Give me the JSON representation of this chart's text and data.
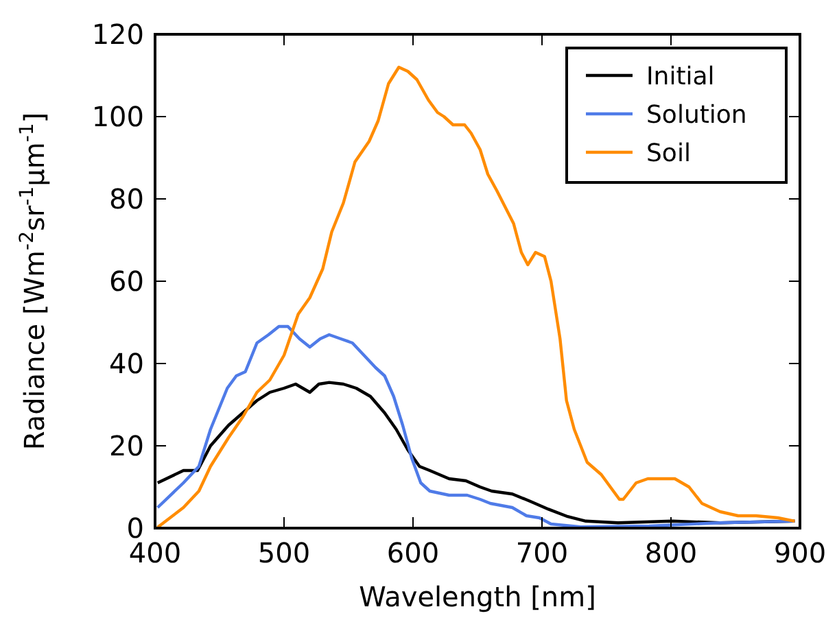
{
  "chart_data": {
    "type": "line",
    "xlabel": "Wavelength [nm]",
    "ylabel": "Radiance [Wm$^{-2}$sr$^{-1}$μm$^{-1}$]",
    "xlim": [
      400,
      900
    ],
    "xticks": [
      400,
      500,
      600,
      700,
      800,
      900
    ],
    "ylim": [
      0,
      120
    ],
    "yticks": [
      0,
      20,
      40,
      60,
      80,
      100,
      120
    ],
    "grid": false,
    "legend": "top right",
    "line_style": "solid",
    "marker": "none",
    "series": [
      {
        "name": "Initial",
        "color": "#000000",
        "x": [
          402,
          422,
          433,
          443,
          457,
          468,
          479,
          489,
          500,
          509,
          520,
          527,
          535,
          546,
          556,
          567,
          578,
          587,
          596,
          605,
          613,
          628,
          641,
          652,
          661,
          677,
          691,
          705,
          720,
          734,
          759,
          801,
          838,
          896
        ],
        "values": [
          11,
          14,
          14,
          20,
          25,
          28,
          31,
          33,
          34,
          35,
          33,
          35,
          35.4,
          35,
          34,
          32,
          28,
          24,
          19,
          15,
          14,
          12,
          11.5,
          10,
          9,
          8.3,
          6.5,
          4.6,
          2.8,
          1.7,
          1.3,
          1.7,
          1.3,
          1.7
        ]
      },
      {
        "name": "Solution",
        "color": "#4f7be8",
        "x": [
          402,
          422,
          434,
          443,
          456,
          463,
          470,
          479,
          488,
          496,
          503,
          512,
          520,
          528,
          535,
          544,
          553,
          562,
          571,
          578,
          585,
          592,
          599,
          606,
          613,
          628,
          642,
          652,
          660,
          677,
          688,
          698,
          707,
          730,
          783,
          838,
          896
        ],
        "values": [
          5,
          11,
          15,
          24,
          34,
          37,
          38,
          45,
          47,
          49,
          49,
          46,
          44,
          46,
          47,
          46,
          45,
          42,
          39,
          37,
          32,
          25,
          17,
          11,
          9,
          8,
          8,
          7,
          6,
          5,
          3,
          2.5,
          1,
          0.3,
          0.5,
          1.3,
          1.7
        ]
      },
      {
        "name": "Soil",
        "color": "#ff8c00",
        "x": [
          402,
          422,
          434,
          443,
          457,
          468,
          479,
          489,
          500,
          511,
          520,
          530,
          537,
          546,
          555,
          566,
          573,
          581,
          589,
          596,
          603,
          612,
          619,
          624,
          631,
          640,
          645,
          652,
          658,
          665,
          678,
          684,
          689,
          695,
          702,
          707,
          714,
          719,
          725,
          735,
          746,
          753,
          760,
          763,
          773,
          782,
          797,
          803,
          814,
          824,
          838,
          852,
          866,
          883,
          896
        ],
        "values": [
          0.2,
          5,
          9,
          15,
          22,
          27,
          33,
          36,
          42,
          52,
          56,
          63,
          72,
          79,
          89,
          94,
          99,
          108,
          112,
          111,
          109,
          104,
          101,
          100,
          98,
          98,
          96,
          92,
          86,
          82,
          74,
          67,
          64,
          67,
          66,
          60,
          46,
          31,
          24,
          16,
          13,
          10,
          7,
          7,
          11,
          12,
          12,
          12,
          10,
          6,
          4,
          3,
          3,
          2.5,
          1.7
        ]
      }
    ]
  }
}
